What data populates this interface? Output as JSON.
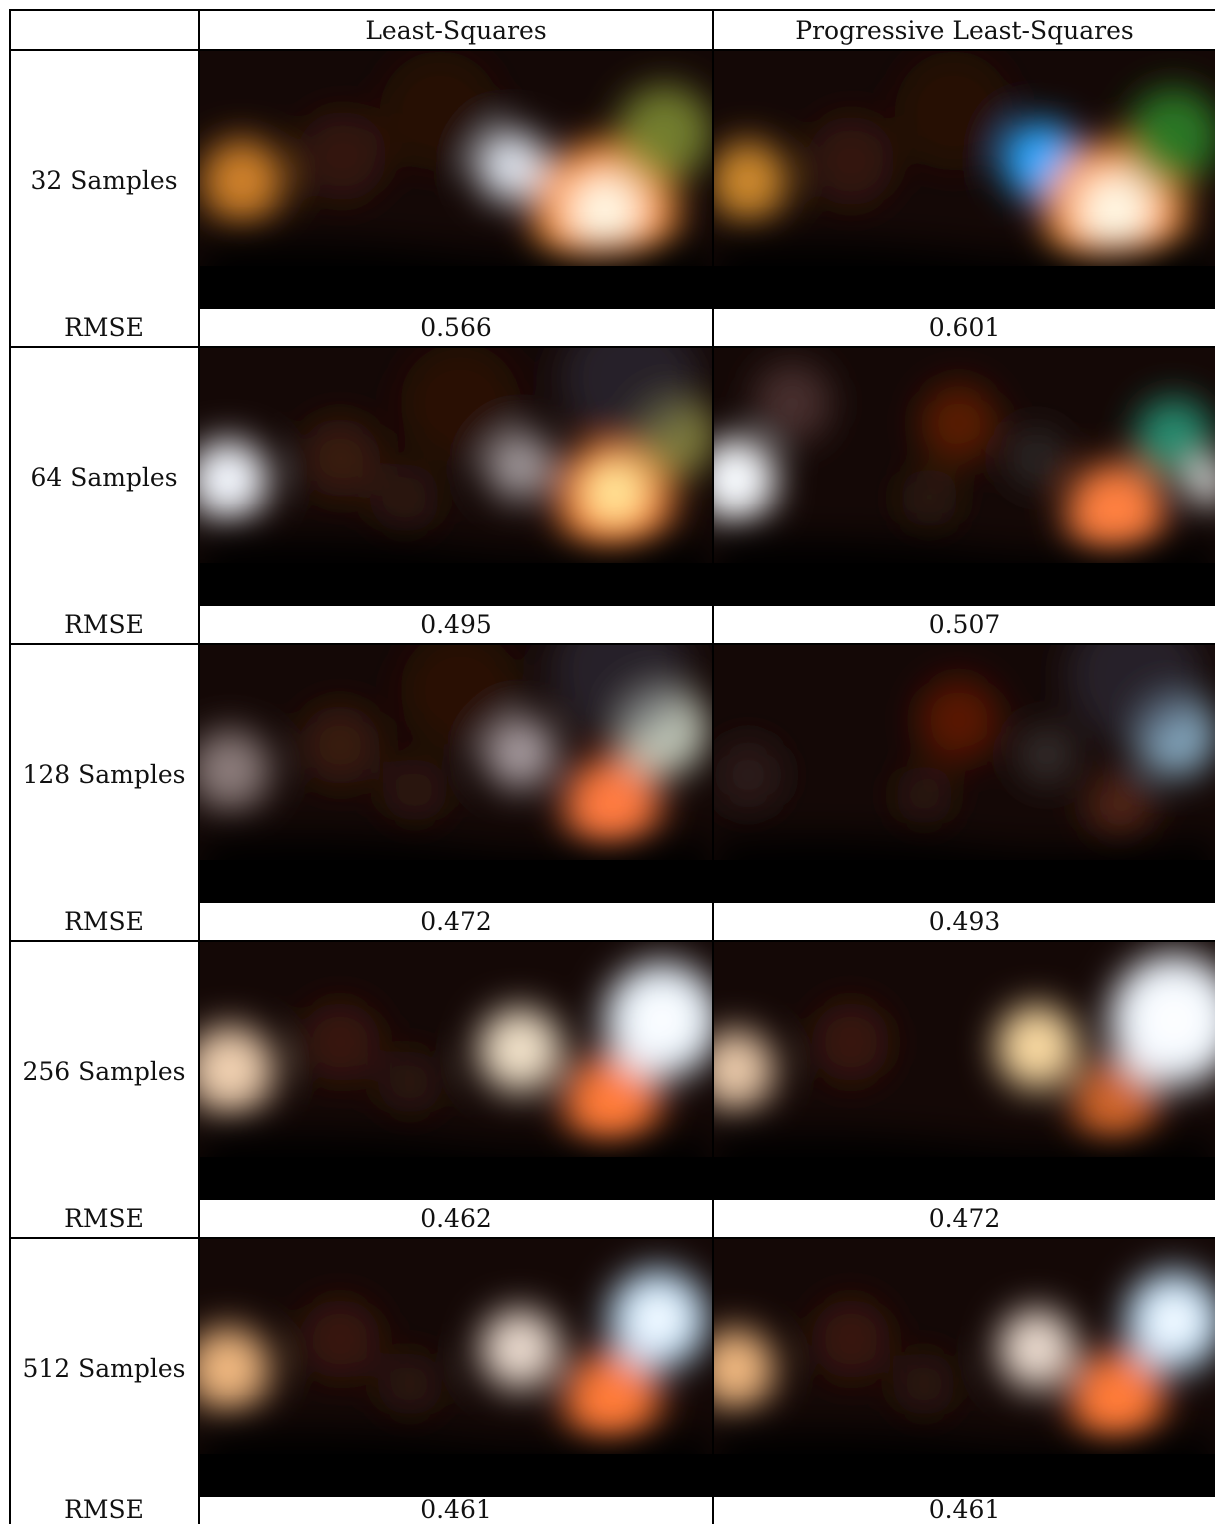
{
  "header": {
    "corner": "",
    "col_ls": "Least-Squares",
    "col_pls": "Progressive Least-Squares"
  },
  "metric_label": "RMSE",
  "rows": [
    {
      "label": "32 Samples",
      "rmse_ls": "0.566",
      "rmse_pls": "0.601",
      "ls_blobs": [
        {
          "cx": 42,
          "cy": 130,
          "r": 42,
          "color": "#d9882a",
          "op": 0.95
        },
        {
          "cx": 142,
          "cy": 105,
          "r": 45,
          "color": "#4a2210",
          "op": 0.6
        },
        {
          "cx": 312,
          "cy": 115,
          "r": 36,
          "color": "#e6ecf7",
          "op": 0.95
        },
        {
          "cx": 405,
          "cy": 162,
          "r": 72,
          "color": "#ff9a40",
          "op": 1
        },
        {
          "cx": 405,
          "cy": 160,
          "r": 36,
          "color": "#fff8e4",
          "op": 1
        },
        {
          "cx": 465,
          "cy": 82,
          "r": 48,
          "color": "#8a9a3a",
          "op": 0.8
        },
        {
          "cx": 240,
          "cy": 60,
          "r": 60,
          "color": "#3a1a0c",
          "op": 0.5
        }
      ],
      "pls_blobs": [
        {
          "cx": 35,
          "cy": 130,
          "r": 40,
          "color": "#d89030",
          "op": 0.95
        },
        {
          "cx": 140,
          "cy": 110,
          "r": 45,
          "color": "#4a2210",
          "op": 0.6
        },
        {
          "cx": 335,
          "cy": 110,
          "r": 40,
          "color": "#2aa8ff",
          "op": 1
        },
        {
          "cx": 410,
          "cy": 162,
          "r": 72,
          "color": "#ff9a40",
          "op": 1
        },
        {
          "cx": 410,
          "cy": 160,
          "r": 38,
          "color": "#fff8e4",
          "op": 1
        },
        {
          "cx": 470,
          "cy": 85,
          "r": 48,
          "color": "#2e8a2a",
          "op": 0.85
        },
        {
          "cx": 245,
          "cy": 60,
          "r": 60,
          "color": "#3a1a0c",
          "op": 0.5
        }
      ]
    },
    {
      "label": "64 Samples",
      "rmse_ls": "0.495",
      "rmse_pls": "0.507",
      "ls_blobs": [
        {
          "cx": 28,
          "cy": 132,
          "r": 40,
          "color": "#f4f8ff",
          "op": 1
        },
        {
          "cx": 140,
          "cy": 110,
          "r": 40,
          "color": "#4a2410",
          "op": 0.7
        },
        {
          "cx": 205,
          "cy": 150,
          "r": 35,
          "color": "#3a1a10",
          "op": 0.6
        },
        {
          "cx": 320,
          "cy": 118,
          "r": 34,
          "color": "#b8b0b4",
          "op": 0.85
        },
        {
          "cx": 415,
          "cy": 150,
          "r": 58,
          "color": "#ff8a3a",
          "op": 1
        },
        {
          "cx": 415,
          "cy": 145,
          "r": 28,
          "color": "#fff0a0",
          "op": 1
        },
        {
          "cx": 475,
          "cy": 88,
          "r": 42,
          "color": "#9a9a4a",
          "op": 0.8
        },
        {
          "cx": 260,
          "cy": 55,
          "r": 60,
          "color": "#3a1808",
          "op": 0.55
        },
        {
          "cx": 430,
          "cy": 30,
          "r": 70,
          "color": "#3a3a4a",
          "op": 0.5
        }
      ],
      "pls_blobs": [
        {
          "cx": 22,
          "cy": 132,
          "r": 42,
          "color": "#f8fbff",
          "op": 1
        },
        {
          "cx": 80,
          "cy": 55,
          "r": 40,
          "color": "#6a4a4a",
          "op": 0.6
        },
        {
          "cx": 250,
          "cy": 75,
          "r": 40,
          "color": "#6a2008",
          "op": 0.8
        },
        {
          "cx": 220,
          "cy": 150,
          "r": 30,
          "color": "#3a2418",
          "op": 0.6
        },
        {
          "cx": 330,
          "cy": 110,
          "r": 30,
          "color": "#3a3a3a",
          "op": 0.6
        },
        {
          "cx": 410,
          "cy": 165,
          "r": 50,
          "color": "#ff8040",
          "op": 1
        },
        {
          "cx": 470,
          "cy": 90,
          "r": 40,
          "color": "#2a9a7a",
          "op": 0.9
        },
        {
          "cx": 505,
          "cy": 135,
          "r": 22,
          "color": "#ffffff",
          "op": 0.9
        }
      ]
    },
    {
      "label": "128 Samples",
      "rmse_ls": "0.472",
      "rmse_pls": "0.493",
      "ls_blobs": [
        {
          "cx": 30,
          "cy": 125,
          "r": 40,
          "color": "#9a8a88",
          "op": 0.9
        },
        {
          "cx": 140,
          "cy": 100,
          "r": 40,
          "color": "#4a2210",
          "op": 0.7
        },
        {
          "cx": 215,
          "cy": 145,
          "r": 32,
          "color": "#3a2012",
          "op": 0.7
        },
        {
          "cx": 320,
          "cy": 108,
          "r": 36,
          "color": "#c0b4b8",
          "op": 0.85
        },
        {
          "cx": 412,
          "cy": 160,
          "r": 48,
          "color": "#ff7a40",
          "op": 1
        },
        {
          "cx": 462,
          "cy": 85,
          "r": 46,
          "color": "#c8d0c0",
          "op": 0.95
        },
        {
          "cx": 260,
          "cy": 45,
          "r": 60,
          "color": "#3a1808",
          "op": 0.55
        },
        {
          "cx": 420,
          "cy": 25,
          "r": 70,
          "color": "#3a3a4a",
          "op": 0.5
        }
      ],
      "pls_blobs": [
        {
          "cx": 35,
          "cy": 130,
          "r": 36,
          "color": "#3a2a2a",
          "op": 0.6
        },
        {
          "cx": 250,
          "cy": 75,
          "r": 42,
          "color": "#6a1a06",
          "op": 0.8
        },
        {
          "cx": 215,
          "cy": 150,
          "r": 30,
          "color": "#3a2012",
          "op": 0.6
        },
        {
          "cx": 340,
          "cy": 110,
          "r": 30,
          "color": "#4a4444",
          "op": 0.6
        },
        {
          "cx": 415,
          "cy": 160,
          "r": 35,
          "color": "#6a3020",
          "op": 0.7
        },
        {
          "cx": 472,
          "cy": 90,
          "r": 42,
          "color": "#8ab0c8",
          "op": 0.95
        },
        {
          "cx": 430,
          "cy": 30,
          "r": 70,
          "color": "#3a3a4a",
          "op": 0.5
        }
      ]
    },
    {
      "label": "256 Samples",
      "rmse_ls": "0.462",
      "rmse_pls": "0.472",
      "ls_blobs": [
        {
          "cx": 30,
          "cy": 128,
          "r": 44,
          "color": "#f0d0b0",
          "op": 1
        },
        {
          "cx": 140,
          "cy": 100,
          "r": 40,
          "color": "#4a1e0c",
          "op": 0.7
        },
        {
          "cx": 210,
          "cy": 140,
          "r": 32,
          "color": "#3a2012",
          "op": 0.6
        },
        {
          "cx": 320,
          "cy": 108,
          "r": 42,
          "color": "#f0e0c8",
          "op": 1
        },
        {
          "cx": 412,
          "cy": 160,
          "r": 48,
          "color": "#ff7a38",
          "op": 1
        },
        {
          "cx": 462,
          "cy": 78,
          "r": 58,
          "color": "#e8f4ff",
          "op": 1
        },
        {
          "cx": 462,
          "cy": 78,
          "r": 28,
          "color": "#ffffff",
          "op": 1
        }
      ],
      "pls_blobs": [
        {
          "cx": 22,
          "cy": 128,
          "r": 40,
          "color": "#e8c8a8",
          "op": 1
        },
        {
          "cx": 140,
          "cy": 100,
          "r": 40,
          "color": "#4a1e0c",
          "op": 0.7
        },
        {
          "cx": 330,
          "cy": 105,
          "r": 42,
          "color": "#f8d8a0",
          "op": 1
        },
        {
          "cx": 410,
          "cy": 160,
          "r": 44,
          "color": "#d8682a",
          "op": 0.95
        },
        {
          "cx": 470,
          "cy": 78,
          "r": 66,
          "color": "#eef6ff",
          "op": 1
        },
        {
          "cx": 470,
          "cy": 78,
          "r": 32,
          "color": "#ffffff",
          "op": 1
        }
      ]
    },
    {
      "label": "512 Samples",
      "rmse_ls": "0.461",
      "rmse_pls": "0.461",
      "ls_blobs": [
        {
          "cx": 28,
          "cy": 130,
          "r": 42,
          "color": "#f0b880",
          "op": 1
        },
        {
          "cx": 140,
          "cy": 100,
          "r": 40,
          "color": "#4a1e0c",
          "op": 0.7
        },
        {
          "cx": 210,
          "cy": 145,
          "r": 32,
          "color": "#3a2012",
          "op": 0.6
        },
        {
          "cx": 320,
          "cy": 110,
          "r": 40,
          "color": "#e8d8cc",
          "op": 1
        },
        {
          "cx": 412,
          "cy": 160,
          "r": 48,
          "color": "#ff7a38",
          "op": 1
        },
        {
          "cx": 458,
          "cy": 80,
          "r": 50,
          "color": "#bfe4ff",
          "op": 1
        },
        {
          "cx": 458,
          "cy": 80,
          "r": 24,
          "color": "#ffffff",
          "op": 1
        }
      ],
      "pls_blobs": [
        {
          "cx": 22,
          "cy": 130,
          "r": 40,
          "color": "#f0b880",
          "op": 1
        },
        {
          "cx": 140,
          "cy": 100,
          "r": 40,
          "color": "#4a1e0c",
          "op": 0.7
        },
        {
          "cx": 215,
          "cy": 145,
          "r": 32,
          "color": "#3a2012",
          "op": 0.6
        },
        {
          "cx": 330,
          "cy": 110,
          "r": 40,
          "color": "#e8d8cc",
          "op": 1
        },
        {
          "cx": 412,
          "cy": 160,
          "r": 48,
          "color": "#ff7a38",
          "op": 1
        },
        {
          "cx": 470,
          "cy": 82,
          "r": 50,
          "color": "#bfe4ff",
          "op": 1
        },
        {
          "cx": 470,
          "cy": 82,
          "r": 24,
          "color": "#ffffff",
          "op": 1
        }
      ]
    }
  ]
}
